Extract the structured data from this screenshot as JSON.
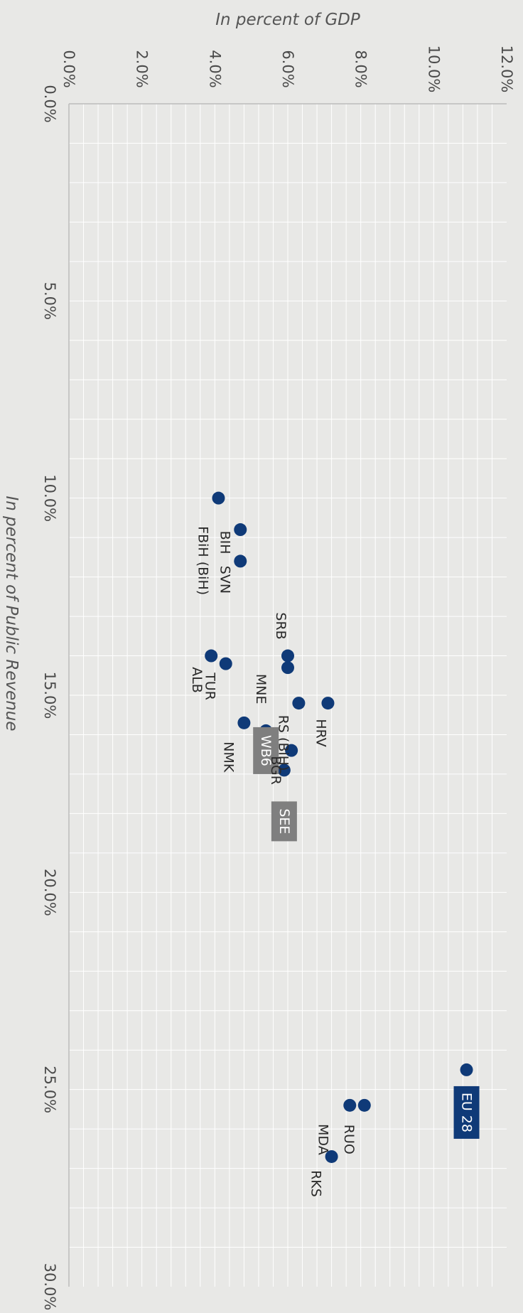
{
  "chart_data": {
    "type": "scatter",
    "xlabel": "In percent of GDP",
    "ylabel": "In percent of Public Revenue",
    "xlim": [
      0,
      12
    ],
    "ylim": [
      0,
      30
    ],
    "x_ticks": [
      "0.0%",
      "2.0%",
      "4.0%",
      "6.0%",
      "8.0%",
      "10.0%",
      "12.0%"
    ],
    "y_ticks": [
      "0.0%",
      "5.0%",
      "10.0%",
      "15.0%",
      "20.0%",
      "25.0%",
      "30.0%"
    ],
    "grid": true,
    "orientation": "rotated-90-clockwise",
    "points": [
      {
        "label": "BIH",
        "x": 4.7,
        "y": 10.8
      },
      {
        "label": "FBiH (BiH)",
        "x": 4.1,
        "y": 10.0
      },
      {
        "label": "SVN",
        "x": 4.7,
        "y": 11.6
      },
      {
        "label": "SRB",
        "x": 6.0,
        "y": 14.0
      },
      {
        "label": "MNE",
        "x": 6.0,
        "y": 14.3
      },
      {
        "label": "ALB",
        "x": 3.9,
        "y": 14.0
      },
      {
        "label": "TUR",
        "x": 4.3,
        "y": 14.2
      },
      {
        "label": "HRV",
        "x": 7.1,
        "y": 15.2
      },
      {
        "label": "RS (BiH)",
        "x": 6.3,
        "y": 15.2
      },
      {
        "label": "NMK",
        "x": 4.8,
        "y": 15.7
      },
      {
        "label": "WB6",
        "x": 5.4,
        "y": 15.9
      },
      {
        "label": "BGR",
        "x": 6.1,
        "y": 16.4
      },
      {
        "label": "SEE",
        "x": 5.9,
        "y": 16.9
      },
      {
        "label": "EU 28",
        "x": 10.9,
        "y": 24.5
      },
      {
        "label": "RUO",
        "x": 8.1,
        "y": 25.4
      },
      {
        "label": "MDA",
        "x": 7.7,
        "y": 25.4
      },
      {
        "label": "RKS",
        "x": 7.2,
        "y": 26.7
      }
    ],
    "highlighted": {
      "EU 28": "#0f3a78",
      "WB6": "#7f7f7f",
      "SEE": "#7f7f7f"
    },
    "colors": {
      "point": "#0f3a78",
      "grid": "#ffffff",
      "axis": "#bcbcbc",
      "background": "#e8e8e6"
    }
  }
}
